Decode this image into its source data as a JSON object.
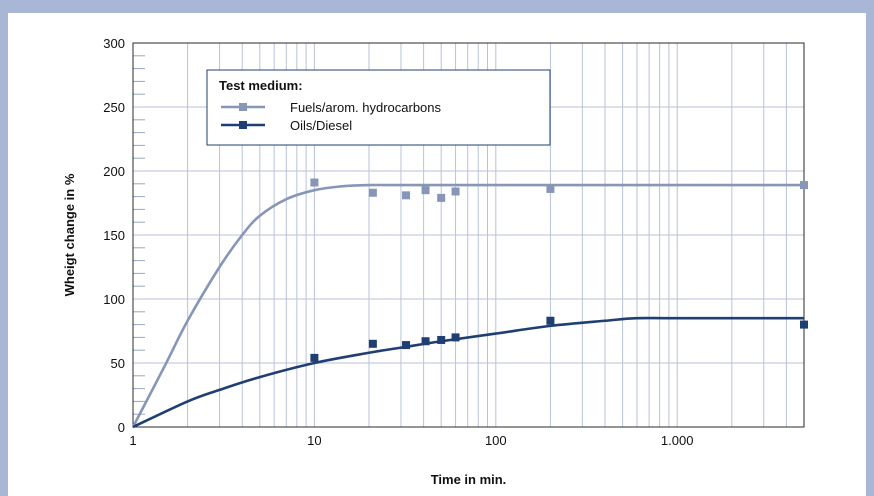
{
  "chart_data": {
    "type": "scatter",
    "xscale": "log",
    "xlim": [
      1,
      5000
    ],
    "ylim": [
      0,
      300
    ],
    "xlabel": "Time in min.",
    "ylabel": "Wheigt change in %",
    "x_ticks": [
      1,
      10,
      100,
      1000
    ],
    "x_tick_labels": [
      "1",
      "10",
      "100",
      "1.000"
    ],
    "y_ticks": [
      0,
      50,
      100,
      150,
      200,
      250,
      300
    ],
    "y_tick_labels": [
      "0",
      "50",
      "100",
      "150",
      "200",
      "250",
      "300"
    ],
    "grid": true,
    "legend": {
      "title": "Test medium:",
      "placement": "top-left"
    },
    "series": [
      {
        "name": "Fuels/arom. hydrocarbons",
        "color": "#8796b7",
        "points": {
          "x": [
            10,
            21,
            32,
            41,
            50,
            60,
            200,
            5000
          ],
          "y": [
            191,
            183,
            181,
            185,
            179,
            184,
            186,
            189
          ]
        },
        "trend": {
          "x": [
            1,
            1.5,
            2,
            3,
            4,
            5,
            7,
            10,
            14,
            20,
            30,
            100,
            1000,
            5000
          ],
          "y": [
            0,
            48,
            83,
            125,
            150,
            165,
            178,
            185,
            188,
            189,
            189,
            189,
            189,
            189
          ]
        }
      },
      {
        "name": "Oils/Diesel",
        "color": "#1f3f73",
        "points": {
          "x": [
            10,
            21,
            32,
            41,
            50,
            60,
            200,
            5000
          ],
          "y": [
            54,
            65,
            64,
            67,
            68,
            70,
            83,
            80
          ]
        },
        "trend": {
          "x": [
            1,
            2,
            3,
            5,
            10,
            20,
            30,
            50,
            100,
            200,
            400,
            600,
            1000,
            5000
          ],
          "y": [
            0,
            20,
            29,
            39,
            50,
            58,
            62,
            67,
            73,
            79,
            83,
            85,
            85,
            85
          ]
        }
      }
    ]
  }
}
